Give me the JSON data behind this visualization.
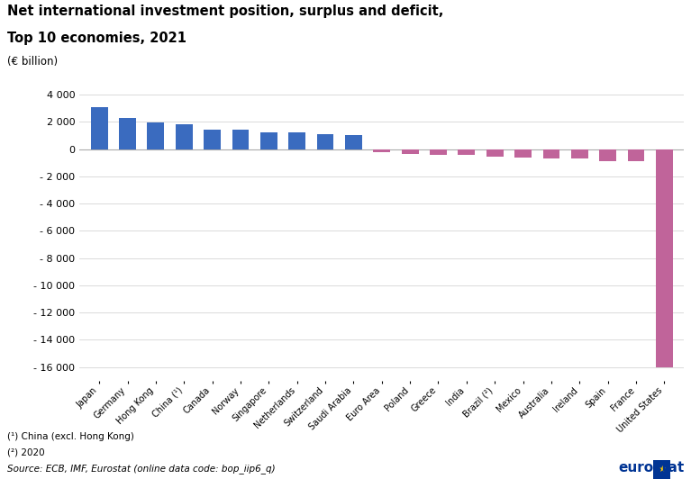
{
  "title_line1": "Net international investment position, surplus and deficit,",
  "title_line2": "Top 10 economies, 2021",
  "ylabel": "(€ billion)",
  "categories": [
    "Japan",
    "Germany",
    "Hong Kong",
    "China (¹)",
    "Canada",
    "Norway",
    "Singapore",
    "Netherlands",
    "Switzerland",
    "Saudi Arabia",
    "Euro Area",
    "Poland",
    "Greece",
    "India",
    "Brazil (²)",
    "Mexico",
    "Australia",
    "Ireland",
    "Spain",
    "France",
    "United States"
  ],
  "values": [
    3050,
    2300,
    1950,
    1800,
    1400,
    1400,
    1250,
    1200,
    1100,
    1050,
    -200,
    -350,
    -400,
    -450,
    -550,
    -600,
    -700,
    -700,
    -900,
    -900,
    -16000
  ],
  "colors": [
    "#3a6bbf",
    "#3a6bbf",
    "#3a6bbf",
    "#3a6bbf",
    "#3a6bbf",
    "#3a6bbf",
    "#3a6bbf",
    "#3a6bbf",
    "#3a6bbf",
    "#3a6bbf",
    "#c0649a",
    "#c0649a",
    "#c0649a",
    "#c0649a",
    "#c0649a",
    "#c0649a",
    "#c0649a",
    "#c0649a",
    "#c0649a",
    "#c0649a",
    "#c0649a"
  ],
  "ylim": [
    -17000,
    4500
  ],
  "yticks": [
    4000,
    2000,
    0,
    -2000,
    -4000,
    -6000,
    -8000,
    -10000,
    -12000,
    -14000,
    -16000
  ],
  "ytick_labels": [
    "4 000",
    "2 000",
    "0",
    "- 2 000",
    "- 4 000",
    "- 6 000",
    "- 8 000",
    "- 10 000",
    "- 12 000",
    "- 14 000",
    "- 16 000"
  ],
  "footnote1": "(¹) China (excl. Hong Kong)",
  "footnote2": "(²) 2020",
  "source": "Source: ECB, IMF, Eurostat (online data code: bop_iip6_q)",
  "bg_color": "#ffffff",
  "grid_color": "#cccccc"
}
